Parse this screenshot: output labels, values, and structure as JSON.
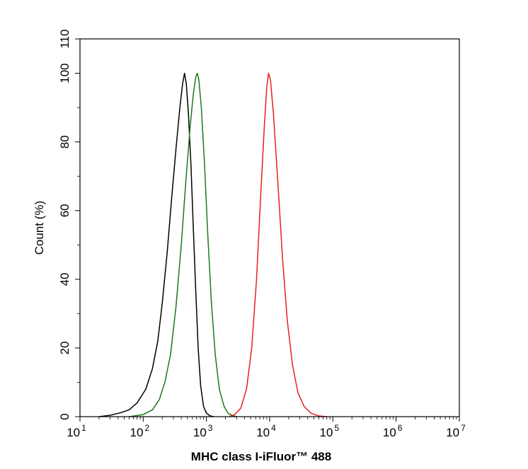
{
  "chart_data": {
    "type": "line",
    "title": "",
    "xlabel": "MHC class I-iFluor™ 488",
    "ylabel": "Count  (%)",
    "x_scale": "log",
    "xlim": [
      10,
      10000000
    ],
    "ylim": [
      0,
      110
    ],
    "x_ticks": [
      {
        "base": "10",
        "exp": "1",
        "value": 10
      },
      {
        "base": "10",
        "exp": "2",
        "value": 100
      },
      {
        "base": "10",
        "exp": "3",
        "value": 1000
      },
      {
        "base": "10",
        "exp": "4",
        "value": 10000
      },
      {
        "base": "10",
        "exp": "5",
        "value": 100000
      },
      {
        "base": "10",
        "exp": "6",
        "value": 1000000
      },
      {
        "base": "10",
        "exp": "7",
        "value": 10000000
      }
    ],
    "y_ticks": [
      "0",
      "20",
      "40",
      "60",
      "80",
      "100",
      "110"
    ],
    "grid": false,
    "legend": "none",
    "series": [
      {
        "color": "#000000",
        "points": [
          [
            20,
            0
          ],
          [
            30,
            0.4
          ],
          [
            45,
            1.2
          ],
          [
            60,
            2
          ],
          [
            80,
            4
          ],
          [
            110,
            8
          ],
          [
            140,
            14
          ],
          [
            170,
            22
          ],
          [
            200,
            33
          ],
          [
            240,
            48
          ],
          [
            280,
            63
          ],
          [
            330,
            78
          ],
          [
            380,
            90
          ],
          [
            420,
            97
          ],
          [
            450,
            100
          ],
          [
            480,
            97
          ],
          [
            520,
            88
          ],
          [
            570,
            73
          ],
          [
            620,
            55
          ],
          [
            680,
            36
          ],
          [
            740,
            20
          ],
          [
            810,
            9
          ],
          [
            900,
            3
          ],
          [
            1000,
            1
          ],
          [
            1150,
            0.2
          ],
          [
            1300,
            0
          ]
        ]
      },
      {
        "color": "#1a7a1a",
        "points": [
          [
            60,
            0
          ],
          [
            100,
            0.6
          ],
          [
            140,
            2
          ],
          [
            180,
            5
          ],
          [
            220,
            10
          ],
          [
            270,
            18
          ],
          [
            330,
            32
          ],
          [
            400,
            50
          ],
          [
            470,
            68
          ],
          [
            550,
            84
          ],
          [
            620,
            94
          ],
          [
            680,
            99
          ],
          [
            720,
            100
          ],
          [
            760,
            98
          ],
          [
            830,
            90
          ],
          [
            930,
            74
          ],
          [
            1050,
            53
          ],
          [
            1200,
            33
          ],
          [
            1380,
            18
          ],
          [
            1600,
            8
          ],
          [
            1900,
            3
          ],
          [
            2200,
            1
          ],
          [
            2600,
            0.3
          ],
          [
            3000,
            0
          ]
        ]
      },
      {
        "color": "#e8211a",
        "points": [
          [
            2300,
            0
          ],
          [
            2800,
            0.6
          ],
          [
            3500,
            2.5
          ],
          [
            4300,
            8
          ],
          [
            5200,
            20
          ],
          [
            6200,
            40
          ],
          [
            7200,
            64
          ],
          [
            8200,
            84
          ],
          [
            9000,
            96
          ],
          [
            9600,
            100
          ],
          [
            10300,
            98
          ],
          [
            11500,
            88
          ],
          [
            13500,
            68
          ],
          [
            16000,
            46
          ],
          [
            19000,
            28
          ],
          [
            23000,
            15
          ],
          [
            28000,
            7
          ],
          [
            35000,
            3
          ],
          [
            45000,
            1
          ],
          [
            60000,
            0.2
          ],
          [
            80000,
            0
          ]
        ]
      }
    ]
  }
}
